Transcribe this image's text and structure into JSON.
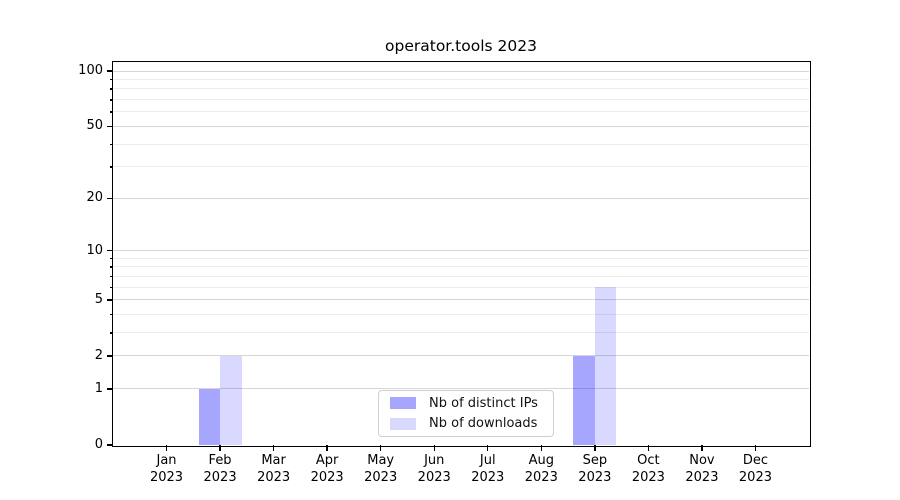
{
  "title": "operator.tools 2023",
  "chart_data": {
    "type": "bar",
    "title": "operator.tools 2023",
    "year_label": "2023",
    "categories": [
      "Jan",
      "Feb",
      "Mar",
      "Apr",
      "May",
      "Jun",
      "Jul",
      "Aug",
      "Sep",
      "Oct",
      "Nov",
      "Dec"
    ],
    "series": [
      {
        "name": "Nb of distinct IPs",
        "color": "rgba(0,0,255,0.35)",
        "values": [
          0,
          1,
          0,
          0,
          0,
          0,
          0,
          0,
          2,
          0,
          0,
          0
        ]
      },
      {
        "name": "Nb of downloads",
        "color": "rgba(0,0,255,0.15)",
        "values": [
          0,
          2,
          0,
          0,
          0,
          0,
          0,
          0,
          6,
          0,
          0,
          0
        ]
      }
    ],
    "yscale": "log1p",
    "ylim": [
      0,
      112
    ],
    "y_major_ticks": [
      0,
      1,
      2,
      5,
      10,
      20,
      50,
      100
    ],
    "y_minor_ticks": [
      3,
      4,
      6,
      7,
      8,
      9,
      30,
      40,
      60,
      70,
      80,
      90
    ],
    "grid": true,
    "legend_position": "lower center"
  },
  "colors": {
    "major_grid": "#d6d6d6",
    "minor_grid": "#ededed",
    "spine": "#000000",
    "background": "#ffffff"
  }
}
